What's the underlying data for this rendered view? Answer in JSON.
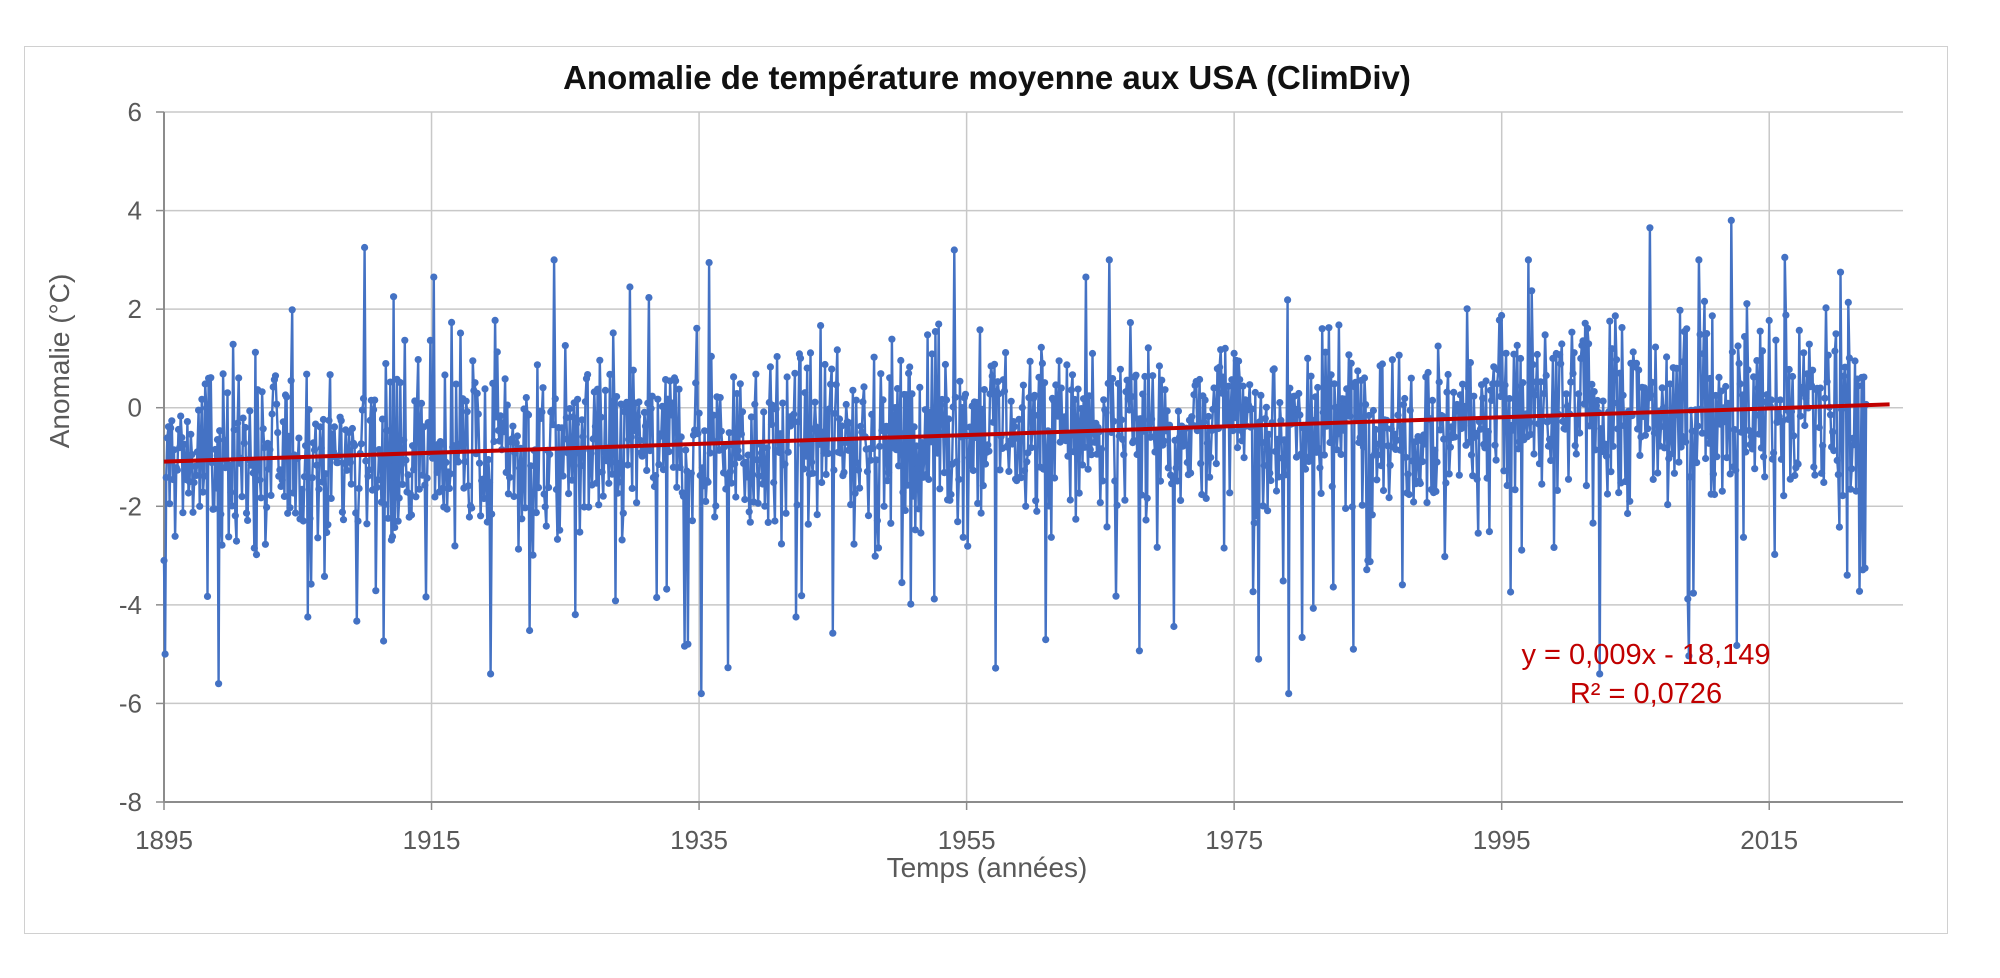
{
  "chart_data": {
    "type": "line",
    "title": "Anomalie de température moyenne aux USA (ClimDiv)",
    "xlabel": "Temps (années)",
    "ylabel": "Anomalie (°C)",
    "xlim": [
      1895,
      2025
    ],
    "ylim": [
      -8,
      6
    ],
    "x_ticks": [
      "1895",
      "1915",
      "1935",
      "1955",
      "1975",
      "1995",
      "2015"
    ],
    "y_ticks": [
      "6",
      "4",
      "2",
      "0",
      "-2",
      "-4",
      "-6",
      "-8"
    ],
    "grid": true,
    "legend": "none",
    "series": [
      {
        "kind": "monthly anomalies (line with markers)",
        "color": "#4472c4",
        "x_start": 1895.0,
        "x_step": 0.08333,
        "count": 1528,
        "notable_points": [
          {
            "x": 1895.0,
            "y": -3.1
          },
          {
            "x": 1895.1,
            "y": -5.0
          },
          {
            "x": 1899.1,
            "y": -5.6
          },
          {
            "x": 1910.0,
            "y": 3.25
          },
          {
            "x": 1929.8,
            "y": 2.45
          },
          {
            "x": 1935.2,
            "y": -5.8
          },
          {
            "x": 1954.1,
            "y": 3.2
          },
          {
            "x": 1963.9,
            "y": 2.65
          },
          {
            "x": 1976.8,
            "y": -5.1
          },
          {
            "x": 1979.1,
            "y": -5.8
          },
          {
            "x": 1983.9,
            "y": -4.9
          },
          {
            "x": 2006.1,
            "y": 3.65
          },
          {
            "x": 2012.2,
            "y": 3.8
          },
          {
            "x": 2016.2,
            "y": 3.05
          },
          {
            "x": 2020.3,
            "y": 2.75
          }
        ]
      }
    ],
    "trendline": {
      "color": "#c00000",
      "slope": 0.009,
      "intercept": -18.149,
      "x_range": [
        1895,
        2024
      ]
    },
    "annotation": {
      "equation": "y = 0,009x - 18,149",
      "r2": "R² = 0,0726"
    }
  }
}
